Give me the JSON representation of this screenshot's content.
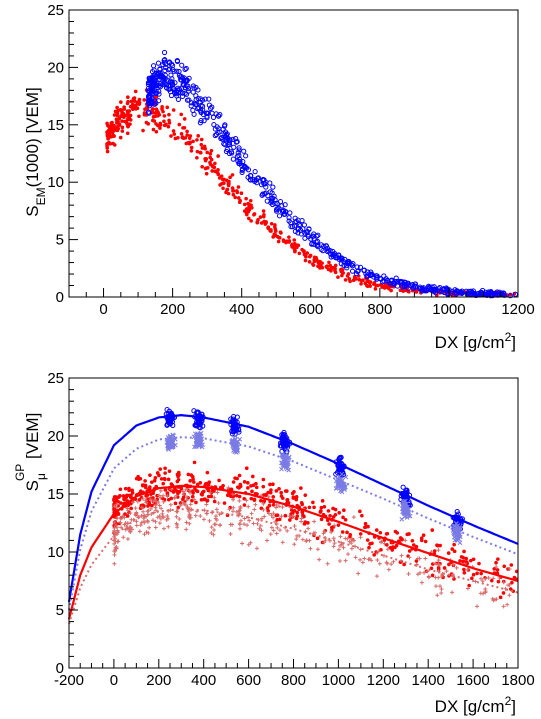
{
  "chart_data": [
    {
      "type": "scatter",
      "xlabel": "DX [g/cm",
      "xlabel_sup": "2",
      "xlabel_end": "]",
      "ylabel_main": "S",
      "ylabel_sub": "EM",
      "ylabel_rest": "(1000) [VEM]",
      "xlim": [
        -100,
        1200
      ],
      "ylim": [
        0,
        25
      ],
      "xticks": [
        0,
        200,
        400,
        600,
        800,
        1000,
        1200
      ],
      "yticks": [
        0,
        5,
        10,
        15,
        20,
        25
      ],
      "x_tick_labels": [
        "0",
        "200",
        "400",
        "600",
        "800",
        "1000",
        "1200"
      ],
      "y_tick_labels": [
        "0",
        "5",
        "10",
        "15",
        "20",
        "25"
      ],
      "grid": false,
      "colors": {
        "red": "#ff0000",
        "blue": "#0000ff"
      },
      "series": [
        {
          "color": "red",
          "marker": "filled-circle",
          "trend": [
            [
              10,
              14.0
            ],
            [
              50,
              15.5
            ],
            [
              100,
              16.5
            ],
            [
              150,
              16.0
            ],
            [
              200,
              15.0
            ],
            [
              250,
              13.8
            ],
            [
              300,
              12.0
            ],
            [
              350,
              10.2
            ],
            [
              400,
              8.6
            ],
            [
              450,
              7.0
            ],
            [
              500,
              5.5
            ],
            [
              550,
              4.4
            ],
            [
              600,
              3.4
            ],
            [
              650,
              2.6
            ],
            [
              700,
              1.9
            ],
            [
              750,
              1.4
            ],
            [
              800,
              1.0
            ],
            [
              900,
              0.6
            ],
            [
              1000,
              0.35
            ],
            [
              1100,
              0.2
            ],
            [
              1200,
              0.1
            ]
          ]
        },
        {
          "color": "blue",
          "marker": "open-circle",
          "trend": [
            [
              130,
              17.5
            ],
            [
              170,
              19.5
            ],
            [
              200,
              19.0
            ],
            [
              250,
              17.8
            ],
            [
              300,
              16.0
            ],
            [
              350,
              14.0
            ],
            [
              400,
              11.8
            ],
            [
              450,
              10.0
            ],
            [
              500,
              8.0
            ],
            [
              550,
              6.5
            ],
            [
              600,
              5.2
            ],
            [
              650,
              4.0
            ],
            [
              700,
              3.0
            ],
            [
              750,
              2.2
            ],
            [
              800,
              1.6
            ],
            [
              900,
              0.9
            ],
            [
              1000,
              0.5
            ],
            [
              1100,
              0.3
            ],
            [
              1200,
              0.2
            ]
          ]
        }
      ]
    },
    {
      "type": "scatter",
      "xlabel": "DX [g/cm",
      "xlabel_sup": "2",
      "xlabel_end": "]",
      "ylabel_main": "S",
      "ylabel_sub": "μ",
      "ylabel_sup": "GP",
      "ylabel_rest": " [VEM]",
      "xlim": [
        -200,
        1800
      ],
      "ylim": [
        0,
        25
      ],
      "xticks": [
        -200,
        0,
        200,
        400,
        600,
        800,
        1000,
        1200,
        1400,
        1600,
        1800
      ],
      "yticks": [
        0,
        5,
        10,
        15,
        20,
        25
      ],
      "x_tick_labels": [
        "-200",
        "0",
        "200",
        "400",
        "600",
        "800",
        "1000",
        "1200",
        "1400",
        "1600",
        "1800"
      ],
      "y_tick_labels": [
        "0",
        "5",
        "10",
        "15",
        "20",
        "25"
      ],
      "grid": false,
      "colors": {
        "red": "#ff0000",
        "blue": "#0000ff",
        "light_blue": "#7b7be6",
        "light_red": "#d96a6a"
      },
      "curves": [
        {
          "color": "blue",
          "style": "solid",
          "points": [
            [
              -200,
              5.7
            ],
            [
              -150,
              11.5
            ],
            [
              -100,
              15.2
            ],
            [
              0,
              19.2
            ],
            [
              100,
              20.9
            ],
            [
              200,
              21.6
            ],
            [
              300,
              21.8
            ],
            [
              400,
              21.6
            ],
            [
              600,
              20.8
            ],
            [
              800,
              19.3
            ],
            [
              1000,
              17.6
            ],
            [
              1200,
              15.8
            ],
            [
              1400,
              14.0
            ],
            [
              1600,
              12.3
            ],
            [
              1800,
              10.7
            ]
          ]
        },
        {
          "color": "light_blue",
          "style": "dotted",
          "points": [
            [
              -200,
              5.0
            ],
            [
              -150,
              10.2
            ],
            [
              -100,
              13.5
            ],
            [
              0,
              17.2
            ],
            [
              100,
              18.9
            ],
            [
              200,
              19.7
            ],
            [
              300,
              19.9
            ],
            [
              400,
              19.8
            ],
            [
              600,
              19.1
            ],
            [
              800,
              17.8
            ],
            [
              1000,
              16.2
            ],
            [
              1200,
              14.6
            ],
            [
              1400,
              12.9
            ],
            [
              1600,
              11.3
            ],
            [
              1800,
              9.8
            ]
          ]
        },
        {
          "color": "red",
          "style": "solid",
          "points": [
            [
              -200,
              4.2
            ],
            [
              -150,
              8.0
            ],
            [
              -100,
              10.4
            ],
            [
              0,
              13.3
            ],
            [
              100,
              14.8
            ],
            [
              200,
              15.5
            ],
            [
              300,
              15.7
            ],
            [
              400,
              15.6
            ],
            [
              600,
              15.0
            ],
            [
              800,
              13.9
            ],
            [
              1000,
              12.6
            ],
            [
              1200,
              11.2
            ],
            [
              1400,
              9.9
            ],
            [
              1600,
              8.6
            ],
            [
              1800,
              7.5
            ]
          ]
        },
        {
          "color": "light_red",
          "style": "dotted",
          "points": [
            [
              -200,
              3.8
            ],
            [
              -150,
              6.9
            ],
            [
              -100,
              8.9
            ],
            [
              0,
              11.4
            ],
            [
              100,
              12.9
            ],
            [
              200,
              13.5
            ],
            [
              300,
              13.7
            ],
            [
              400,
              13.6
            ],
            [
              600,
              13.0
            ],
            [
              800,
              12.0
            ],
            [
              1000,
              10.9
            ],
            [
              1200,
              9.7
            ],
            [
              1400,
              8.5
            ],
            [
              1600,
              7.5
            ],
            [
              1800,
              6.5
            ]
          ]
        }
      ],
      "clusters": [
        {
          "color": "blue",
          "marker": "open-circle",
          "x_centers": [
            250,
            380,
            540,
            760,
            1010,
            1300,
            1530
          ],
          "y_center_curve": "blue"
        },
        {
          "color": "light_blue",
          "marker": "cross",
          "x_centers": [
            250,
            380,
            540,
            760,
            1010,
            1300,
            1530
          ],
          "y_center_curve": "light_blue"
        },
        {
          "color": "red",
          "marker": "filled-circle",
          "x_range": [
            0,
            1800
          ],
          "y_center_curve": "red"
        },
        {
          "color": "light_red",
          "marker": "plus",
          "x_range": [
            0,
            1800
          ],
          "y_center_curve": "light_red"
        }
      ]
    }
  ]
}
